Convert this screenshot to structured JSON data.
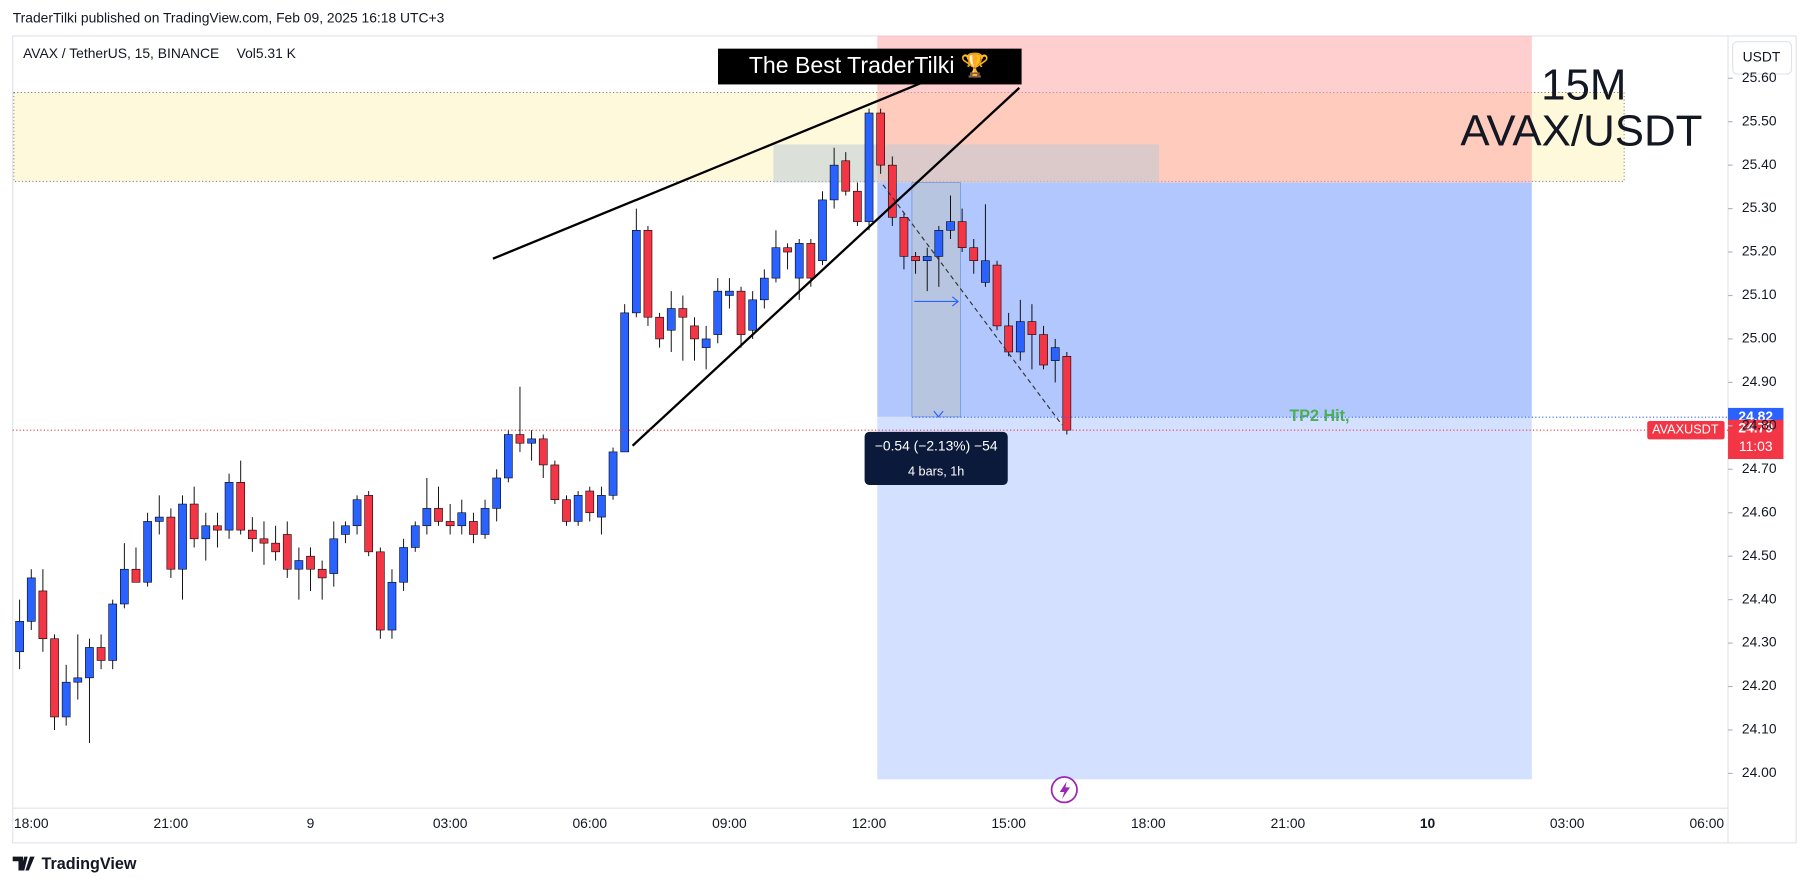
{
  "header": {
    "published": "TraderTilki published on TradingView.com, Feb 09, 2025 16:18 UTC+3"
  },
  "chart_data": {
    "type": "candlestick",
    "symbol": "AVAX / TetherUS, 15, BINANCE",
    "volume": "Vol5.31 K",
    "currency": "USDT",
    "banner": "The Best TraderTilki 🏆",
    "overlay_title": [
      "15M",
      "AVAX/USDT"
    ],
    "tp_label": "TP2 Hit,",
    "measure": [
      "−0.54 (−2.13%) −54",
      "4 bars, 1h"
    ],
    "tp_level": 24.82,
    "last_price": 24.79,
    "countdown": "11:03",
    "symbol_tag": "AVAXUSDT",
    "up_color": "#2962ff",
    "down_color": "#f23645",
    "categories": [
      null,
      "18:00",
      null,
      null,
      null,
      null,
      null,
      null,
      null,
      null,
      null,
      null,
      null,
      "21:00",
      null,
      null,
      null,
      null,
      null,
      null,
      null,
      null,
      null,
      null,
      null,
      "9",
      null,
      null,
      null,
      null,
      null,
      null,
      null,
      null,
      null,
      null,
      null,
      "03:00",
      null,
      null,
      null,
      null,
      null,
      null,
      null,
      null,
      null,
      null,
      null,
      "06:00",
      null,
      null,
      null,
      null,
      null,
      null,
      null,
      null,
      null,
      null,
      null,
      "09:00",
      null,
      null,
      null,
      null,
      null,
      null,
      null,
      null,
      null,
      null,
      null,
      "12:00",
      null,
      null,
      null,
      null,
      null,
      null,
      null,
      null,
      null,
      null,
      null,
      "15:00",
      null,
      null,
      null,
      null,
      null,
      null,
      null,
      null,
      null,
      null,
      null,
      "18:00",
      null,
      null,
      null,
      null,
      null,
      null,
      null,
      null,
      null,
      null,
      null,
      "21:00",
      null,
      null,
      null,
      null,
      null,
      null,
      null,
      null,
      null,
      null,
      null,
      "10",
      null,
      null,
      null,
      null,
      null,
      null,
      null,
      null,
      null,
      null,
      null,
      "03:00",
      null,
      null,
      null,
      null,
      null,
      null,
      null,
      null,
      null,
      null,
      null,
      "06:00",
      null
    ],
    "open": [
      24.28,
      24.35,
      24.42,
      24.31,
      24.13,
      24.21,
      24.22,
      24.29,
      24.26,
      24.39,
      24.47,
      24.44,
      24.58,
      24.59,
      24.47,
      24.62,
      24.54,
      24.57,
      24.56,
      24.67,
      24.56,
      24.54,
      24.53,
      24.55,
      24.47,
      24.5,
      24.47,
      24.46,
      24.55,
      24.57,
      24.64,
      24.51,
      24.33,
      24.44,
      24.52,
      24.57,
      24.61,
      24.58,
      24.57,
      24.58,
      24.55,
      24.61,
      24.68,
      24.78,
      24.76,
      24.77,
      24.71,
      24.63,
      24.58,
      24.65,
      24.59,
      24.64,
      24.74,
      25.06,
      25.25,
      25.05,
      25.02,
      25.07,
      25.03,
      24.98,
      25.01,
      25.1,
      25.11,
      25.02,
      25.09,
      25.14,
      25.21,
      25.14,
      25.22,
      25.18,
      25.32,
      25.41,
      25.34,
      25.27,
      25.52,
      25.4,
      25.28,
      25.19,
      25.18,
      25.19,
      25.25,
      25.27,
      25.21,
      25.13,
      25.17,
      25.03,
      24.97,
      25.04,
      25.01,
      24.95,
      24.96,
      null,
      null,
      null,
      null,
      null,
      null,
      null,
      null,
      null,
      null,
      null,
      null,
      null,
      null,
      null,
      null,
      null,
      null,
      null,
      null,
      null,
      null,
      null,
      null,
      null,
      null,
      null,
      null,
      null,
      null,
      null,
      null,
      null,
      null,
      null,
      null,
      null,
      null,
      null,
      null,
      null,
      null,
      null,
      null,
      null,
      null,
      null,
      null,
      null,
      null,
      null,
      null,
      null,
      null,
      null,
      null
    ],
    "high": [
      24.4,
      24.47,
      24.47,
      24.32,
      24.25,
      24.32,
      24.31,
      24.32,
      24.4,
      24.53,
      24.52,
      24.6,
      24.64,
      24.61,
      24.64,
      24.66,
      24.6,
      24.6,
      24.69,
      24.72,
      24.59,
      24.58,
      24.57,
      24.58,
      24.52,
      24.52,
      24.49,
      24.58,
      24.58,
      24.64,
      24.65,
      24.52,
      24.47,
      24.54,
      24.58,
      24.68,
      24.66,
      24.62,
      24.63,
      24.6,
      24.63,
      24.7,
      24.79,
      24.89,
      24.79,
      24.78,
      24.72,
      24.64,
      24.65,
      24.66,
      24.66,
      24.75,
      25.08,
      25.3,
      25.26,
      25.06,
      25.11,
      25.1,
      25.05,
      25.03,
      25.14,
      25.14,
      25.12,
      25.11,
      25.16,
      25.25,
      25.22,
      25.23,
      25.23,
      25.34,
      25.44,
      25.43,
      25.36,
      25.53,
      25.53,
      25.42,
      25.29,
      25.2,
      25.21,
      25.26,
      25.33,
      25.3,
      25.23,
      25.31,
      25.18,
      25.06,
      25.09,
      25.08,
      25.03,
      25.0,
      24.97,
      null,
      null,
      null,
      null,
      null,
      null,
      null,
      null,
      null,
      null,
      null,
      null,
      null,
      null,
      null,
      null,
      null,
      null,
      null,
      null,
      null,
      null,
      null,
      null,
      null,
      null,
      null,
      null,
      null,
      null,
      null,
      null,
      null,
      null,
      null,
      null,
      null,
      null,
      null,
      null,
      null,
      null,
      null,
      null,
      null,
      null,
      null,
      null,
      null,
      null,
      null,
      null,
      null,
      null,
      null,
      null
    ],
    "low": [
      24.24,
      24.33,
      24.28,
      24.1,
      24.11,
      24.17,
      24.07,
      24.24,
      24.24,
      24.38,
      24.44,
      24.43,
      24.55,
      24.45,
      24.4,
      24.52,
      24.49,
      24.52,
      24.54,
      24.55,
      24.51,
      24.48,
      24.49,
      24.45,
      24.4,
      24.42,
      24.4,
      24.43,
      24.53,
      24.55,
      24.5,
      24.31,
      24.31,
      24.42,
      24.51,
      24.55,
      24.57,
      24.55,
      24.55,
      24.53,
      24.54,
      24.58,
      24.67,
      24.74,
      24.72,
      24.68,
      24.62,
      24.57,
      24.57,
      24.58,
      24.55,
      24.63,
      24.74,
      25.05,
      25.03,
      24.98,
      24.97,
      24.95,
      24.95,
      24.93,
      24.99,
      25.07,
      24.98,
      25.0,
      25.07,
      25.13,
      25.16,
      25.09,
      25.12,
      25.17,
      25.3,
      25.33,
      25.26,
      25.25,
      25.38,
      25.26,
      25.16,
      25.15,
      25.11,
      25.12,
      25.23,
      25.2,
      25.15,
      25.12,
      25.02,
      24.96,
      24.95,
      24.93,
      24.93,
      24.9,
      24.78,
      null,
      null,
      null,
      null,
      null,
      null,
      null,
      null,
      null,
      null,
      null,
      null,
      null,
      null,
      null,
      null,
      null,
      null,
      null,
      null,
      null,
      null,
      null,
      null,
      null,
      null,
      null,
      null,
      null,
      null,
      null,
      null,
      null,
      null,
      null,
      null,
      null,
      null,
      null,
      null,
      null,
      null,
      null,
      null,
      null,
      null,
      null,
      null,
      null,
      null,
      null,
      null,
      null,
      null,
      null,
      null
    ],
    "close": [
      24.35,
      24.45,
      24.31,
      24.13,
      24.21,
      24.22,
      24.29,
      24.26,
      24.39,
      24.47,
      24.44,
      24.58,
      24.59,
      24.47,
      24.62,
      24.54,
      24.57,
      24.56,
      24.67,
      24.56,
      24.54,
      24.53,
      24.51,
      24.47,
      24.49,
      24.47,
      24.45,
      24.54,
      24.57,
      24.63,
      24.51,
      24.33,
      24.44,
      24.52,
      24.57,
      24.61,
      24.58,
      24.57,
      24.6,
      24.55,
      24.61,
      24.68,
      24.78,
      24.76,
      24.77,
      24.71,
      24.63,
      24.58,
      24.64,
      24.6,
      24.64,
      24.74,
      25.06,
      25.25,
      25.05,
      25.0,
      25.07,
      25.05,
      25.0,
      25.0,
      25.11,
      25.11,
      25.01,
      25.09,
      25.14,
      25.21,
      25.2,
      25.22,
      25.14,
      25.32,
      25.4,
      25.34,
      25.27,
      25.52,
      25.4,
      25.28,
      25.19,
      25.18,
      25.19,
      25.25,
      25.27,
      25.21,
      25.18,
      25.18,
      25.03,
      24.97,
      25.04,
      25.01,
      24.94,
      24.98,
      24.79,
      null,
      null,
      null,
      null,
      null,
      null,
      null,
      null,
      null,
      null,
      null,
      null,
      null,
      null,
      null,
      null,
      null,
      null,
      null,
      null,
      null,
      null,
      null,
      null,
      null,
      null,
      null,
      null,
      null,
      null,
      null,
      null,
      null,
      null,
      null,
      null,
      null,
      null,
      null,
      null,
      null,
      null,
      null,
      null,
      null,
      null,
      null,
      null,
      null,
      null,
      null,
      null,
      null,
      null,
      null,
      null
    ],
    "ylim": [
      23.92,
      25.7
    ],
    "yticks": [
      {
        "value": 24.0,
        "label": "24.00"
      },
      {
        "value": 24.1,
        "label": "24.10"
      },
      {
        "value": 24.2,
        "label": "24.20"
      },
      {
        "value": 24.3,
        "label": "24.30"
      },
      {
        "value": 24.4,
        "label": "24.40"
      },
      {
        "value": 24.5,
        "label": "24.50"
      },
      {
        "value": 24.6,
        "label": "24.60"
      },
      {
        "value": 24.7,
        "label": "24.70"
      },
      {
        "value": 24.8,
        "label": "24.80"
      },
      {
        "value": 24.9,
        "label": "24.90"
      },
      {
        "value": 25.0,
        "label": "25.00"
      },
      {
        "value": 25.1,
        "label": "25.10"
      },
      {
        "value": 25.2,
        "label": "25.20"
      },
      {
        "value": 25.3,
        "label": "25.30"
      },
      {
        "value": 25.4,
        "label": "25.40"
      },
      {
        "value": 25.5,
        "label": "25.50"
      },
      {
        "value": 25.6,
        "label": "25.60"
      }
    ]
  },
  "footer": {
    "brand": "TradingView"
  }
}
